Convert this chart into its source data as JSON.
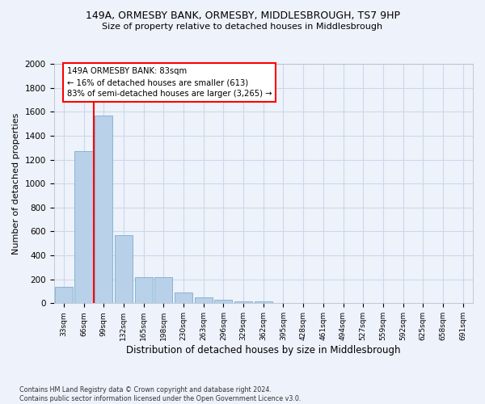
{
  "title_line1": "149A, ORMESBY BANK, ORMESBY, MIDDLESBROUGH, TS7 9HP",
  "title_line2": "Size of property relative to detached houses in Middlesbrough",
  "xlabel": "Distribution of detached houses by size in Middlesbrough",
  "ylabel": "Number of detached properties",
  "bar_color": "#b8d0e8",
  "bar_edge_color": "#7aafcf",
  "categories": [
    "33sqm",
    "66sqm",
    "99sqm",
    "132sqm",
    "165sqm",
    "198sqm",
    "230sqm",
    "263sqm",
    "296sqm",
    "329sqm",
    "362sqm",
    "395sqm",
    "428sqm",
    "461sqm",
    "494sqm",
    "527sqm",
    "559sqm",
    "592sqm",
    "625sqm",
    "658sqm",
    "691sqm"
  ],
  "values": [
    140,
    1270,
    1570,
    570,
    220,
    220,
    90,
    50,
    30,
    15,
    15,
    0,
    0,
    0,
    0,
    0,
    0,
    0,
    0,
    0,
    0
  ],
  "ylim": [
    0,
    2000
  ],
  "yticks": [
    0,
    200,
    400,
    600,
    800,
    1000,
    1200,
    1400,
    1600,
    1800,
    2000
  ],
  "annotation_text": "149A ORMESBY BANK: 83sqm\n← 16% of detached houses are smaller (613)\n83% of semi-detached houses are larger (3,265) →",
  "annotation_box_color": "white",
  "annotation_box_edge": "red",
  "vline_color": "red",
  "grid_color": "#ccd8ec",
  "bg_color": "#eef2fa",
  "footnote": "Contains HM Land Registry data © Crown copyright and database right 2024.\nContains public sector information licensed under the Open Government Licence v3.0."
}
